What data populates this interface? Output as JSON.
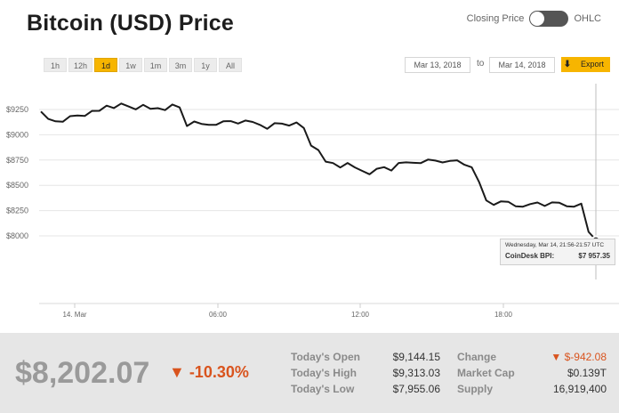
{
  "header": {
    "title": "Bitcoin (USD) Price",
    "toggle_left": "Closing Price",
    "toggle_right": "OHLC"
  },
  "range_buttons": [
    {
      "label": "1h"
    },
    {
      "label": "12h"
    },
    {
      "label": "1d",
      "active": true
    },
    {
      "label": "1w"
    },
    {
      "label": "1m"
    },
    {
      "label": "3m"
    },
    {
      "label": "1y"
    },
    {
      "label": "All"
    }
  ],
  "dates": {
    "from": "Mar 13, 2018",
    "to_label": "to",
    "to": "Mar 14, 2018"
  },
  "export_label": "Export",
  "colors": {
    "accent": "#f7b500",
    "negative": "#d9541e",
    "line": "#1a1a1a"
  },
  "chart_data": {
    "type": "line",
    "title": "",
    "xlabel": "",
    "ylabel": "",
    "y_ticks": [
      "$9250",
      "$9000",
      "$8750",
      "$8500",
      "$8250",
      "$8000"
    ],
    "x_ticks": [
      "14. Mar",
      "06:00",
      "12:00",
      "18:00"
    ],
    "ylim": [
      7850,
      9400
    ],
    "grid": true,
    "series": [
      {
        "values": [
          9230,
          9150,
          9140,
          9150,
          9170,
          9190,
          9200,
          9215,
          9230,
          9295,
          9285,
          9295,
          9280,
          9265,
          9275,
          9250,
          9270,
          9265,
          9285,
          9270,
          9100,
          9110,
          9100,
          9105,
          9120,
          9120,
          9135,
          9125,
          9120,
          9120,
          9105,
          9080,
          9100,
          9110,
          9105,
          9100,
          9060,
          8900,
          8870,
          8720,
          8720,
          8690,
          8700,
          8670,
          8650,
          8630,
          8650,
          8680,
          8660,
          8700,
          8720,
          8730,
          8740,
          8740,
          8745,
          8740,
          8720,
          8740,
          8710,
          8700,
          8520,
          8350,
          8320,
          8320,
          8330,
          8300,
          8310,
          8300,
          8330,
          8310,
          8310,
          8320,
          8300,
          8310,
          8305,
          8040,
          7960
        ]
      }
    ]
  },
  "tooltip": {
    "timestamp": "Wednesday, Mar 14, 21:56-21:57 UTC",
    "label": "CoinDesk BPI:",
    "value": "$7 957.35"
  },
  "footer": {
    "price": "$8,202.07",
    "change_pct": "▼ -10.30%",
    "stats_left": [
      {
        "label": "Today's Open",
        "value": "$9,144.15"
      },
      {
        "label": "Today's High",
        "value": "$9,313.03"
      },
      {
        "label": "Today's Low",
        "value": "$7,955.06"
      }
    ],
    "stats_right": [
      {
        "label": "Change",
        "value": "▼ $-942.08",
        "negative": true
      },
      {
        "label": "Market Cap",
        "value": "$0.139T"
      },
      {
        "label": "Supply",
        "value": "16,919,400"
      }
    ]
  }
}
